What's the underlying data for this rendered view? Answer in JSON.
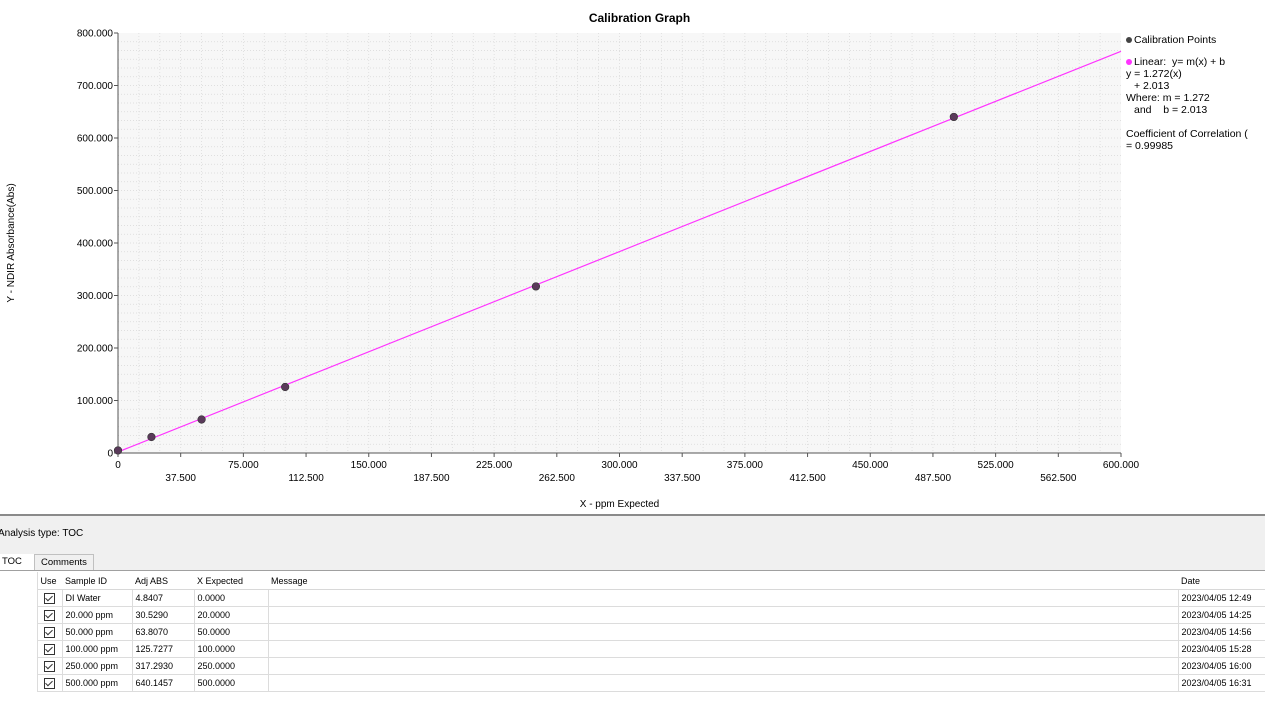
{
  "chart_data": {
    "type": "scatter",
    "title": "Calibration Graph",
    "xlabel": "X - ppm Expected",
    "ylabel": "Y - NDIR Absorbance(Abs)",
    "xlim": [
      0,
      600
    ],
    "ylim": [
      0,
      800
    ],
    "x_ticks_major": [
      "0",
      "75.000",
      "150.000",
      "225.000",
      "300.000",
      "375.000",
      "450.000",
      "525.000",
      "600.000"
    ],
    "x_ticks_minor": [
      "37.500",
      "112.500",
      "187.500",
      "262.500",
      "337.500",
      "412.500",
      "487.500",
      "562.500"
    ],
    "y_ticks": [
      "0",
      "100.000",
      "200.000",
      "300.000",
      "400.000",
      "500.000",
      "600.000",
      "700.000",
      "800.000"
    ],
    "grid": true,
    "legend_position": "right",
    "series": [
      {
        "name": "Calibration Points",
        "color": "#5a3a5a",
        "points": [
          {
            "x": 0.0,
            "y": 4.8407
          },
          {
            "x": 20.0,
            "y": 30.529
          },
          {
            "x": 50.0,
            "y": 63.807
          },
          {
            "x": 100.0,
            "y": 125.7277
          },
          {
            "x": 250.0,
            "y": 317.293
          },
          {
            "x": 500.0,
            "y": 640.1457
          }
        ]
      },
      {
        "name": "Linear:  y= m(x) + b",
        "color": "#ff33ff",
        "slope": 1.272,
        "intercept": 2.013
      }
    ]
  },
  "legend": {
    "points_label": "Calibration Points",
    "linear_label": "Linear:  y= m(x) + b",
    "eq_line1": "y = 1.272(x)",
    "eq_line2": "+ 2.013",
    "where_line": "Where:  m = 1.272",
    "and_line": "and    b = 2.013",
    "coef_line1": "Coefficient of Correlation (",
    "coef_line2": "= 0.99985"
  },
  "panel": {
    "analysis_type_label": "Analysis type:",
    "analysis_type_value": "TOC"
  },
  "tabs": [
    {
      "label": "TOC"
    },
    {
      "label": "Comments"
    }
  ],
  "table": {
    "headers": [
      "Use",
      "Sample ID",
      "Adj ABS",
      "X Expected",
      "Message",
      "Date"
    ],
    "rows": [
      {
        "use": true,
        "sample_id": "DI Water",
        "adj_abs": "4.8407",
        "x_expected": "0.0000",
        "message": "",
        "date": "2023/04/05 12:49"
      },
      {
        "use": true,
        "sample_id": "20.000 ppm",
        "adj_abs": "30.5290",
        "x_expected": "20.0000",
        "message": "",
        "date": "2023/04/05 14:25"
      },
      {
        "use": true,
        "sample_id": "50.000 ppm",
        "adj_abs": "63.8070",
        "x_expected": "50.0000",
        "message": "",
        "date": "2023/04/05 14:56"
      },
      {
        "use": true,
        "sample_id": "100.000 ppm",
        "adj_abs": "125.7277",
        "x_expected": "100.0000",
        "message": "",
        "date": "2023/04/05 15:28"
      },
      {
        "use": true,
        "sample_id": "250.000 ppm",
        "adj_abs": "317.2930",
        "x_expected": "250.0000",
        "message": "",
        "date": "2023/04/05 16:00"
      },
      {
        "use": true,
        "sample_id": "500.000 ppm",
        "adj_abs": "640.1457",
        "x_expected": "500.0000",
        "message": "",
        "date": "2023/04/05 16:31"
      }
    ]
  }
}
